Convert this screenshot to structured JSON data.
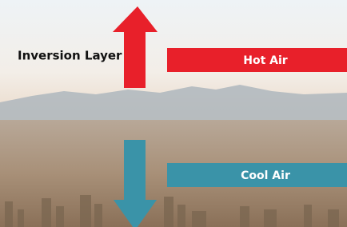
{
  "labels": {
    "inversion_layer": "Inversion Layer",
    "hot_air": "Hot Air",
    "cool_air": "Cool Air"
  }
}
